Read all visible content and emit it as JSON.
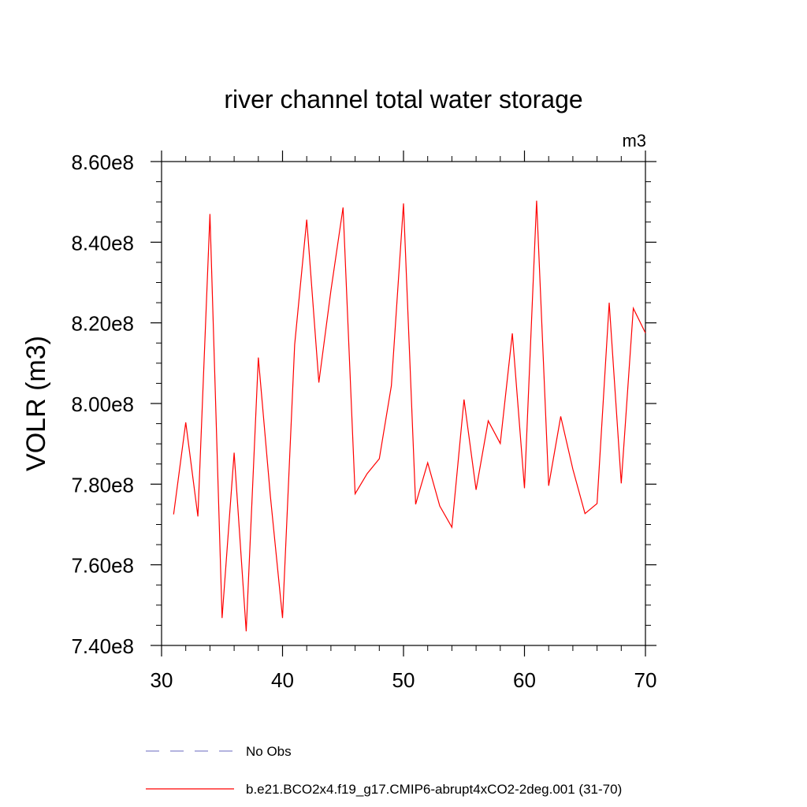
{
  "chart_data": {
    "type": "line",
    "title": "river channel total water storage",
    "units": "m3",
    "ylabel": "VOLR  (m3)",
    "xlabel": "",
    "xlim": [
      30,
      70
    ],
    "ylim": [
      740000000,
      860000000
    ],
    "x_ticks": [
      30,
      40,
      50,
      60,
      70
    ],
    "x_tick_labels": [
      "30",
      "40",
      "50",
      "60",
      "70"
    ],
    "y_ticks": [
      740000000,
      760000000,
      780000000,
      800000000,
      820000000,
      840000000,
      860000000
    ],
    "y_tick_labels": [
      "7.40e8",
      "7.60e8",
      "7.80e8",
      "8.00e8",
      "8.20e8",
      "8.40e8",
      "8.60e8"
    ],
    "grid": false,
    "legend": {
      "position": "bottom",
      "entries": [
        {
          "label": "No Obs",
          "color": "#8888cc",
          "style": "dashed"
        },
        {
          "label": "b.e21.BCO2x4.f19_g17.CMIP6-abrupt4xCO2-2deg.001 (31-70)",
          "color": "#ff0000",
          "style": "solid"
        }
      ]
    },
    "series": [
      {
        "name": "b.e21.BCO2x4.f19_g17.CMIP6-abrupt4xCO2-2deg.001 (31-70)",
        "color": "#ff0000",
        "x": [
          31,
          32,
          33,
          34,
          35,
          36,
          37,
          38,
          39,
          40,
          41,
          42,
          43,
          44,
          45,
          46,
          47,
          48,
          49,
          50,
          51,
          52,
          53,
          54,
          55,
          56,
          57,
          58,
          59,
          60,
          61,
          62,
          63,
          64,
          65,
          66,
          67,
          68,
          69,
          70
        ],
        "y": [
          772500000,
          795300000,
          772000000,
          847000000,
          746800000,
          787800000,
          743500000,
          811400000,
          777000000,
          746800000,
          814600000,
          845600000,
          805200000,
          828000000,
          848600000,
          777600000,
          782600000,
          786300000,
          804400000,
          849600000,
          775000000,
          785300000,
          774600000,
          769300000,
          801000000,
          778600000,
          795700000,
          790100000,
          817400000,
          779000000,
          850300000,
          779600000,
          796800000,
          783700000,
          772700000,
          775200000,
          825000000,
          780200000,
          823600000,
          817500000
        ]
      }
    ]
  }
}
